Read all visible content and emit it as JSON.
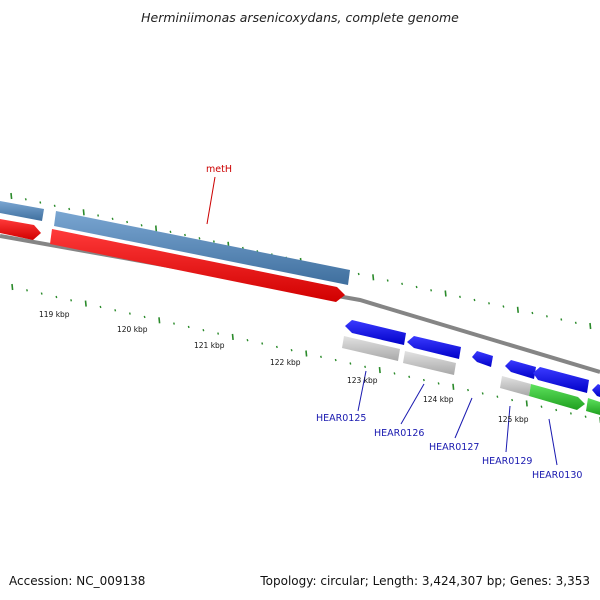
{
  "title": "Herminiimonas arsenicoxydans, complete genome",
  "footer": {
    "accession": "Accession: NC_009138",
    "summary": "Topology: circular; Length: 3,424,307 bp; Genes: 3,353"
  },
  "scale_labels": [
    "119 kbp",
    "120 kbp",
    "121 kbp",
    "122 kbp",
    "123 kbp",
    "124 kbp",
    "125 kbp"
  ],
  "gene_labels": [
    "metH",
    "HEAR0125",
    "HEAR0126",
    "HEAR0127",
    "HEAR0129",
    "HEAR0130"
  ],
  "colors": {
    "background": "#ffffff",
    "backbone": "#888888",
    "tick": "#2a8a2a",
    "cds_steelblue": "#4f86b8",
    "cds_red": "#ff0000",
    "cds_blue": "#0000ff",
    "cds_gray": "#c0c0c0",
    "cds_green": "#2dbb2d",
    "gene_label_blue": "#1a1ab0",
    "gene_label_red": "#cc0000"
  }
}
